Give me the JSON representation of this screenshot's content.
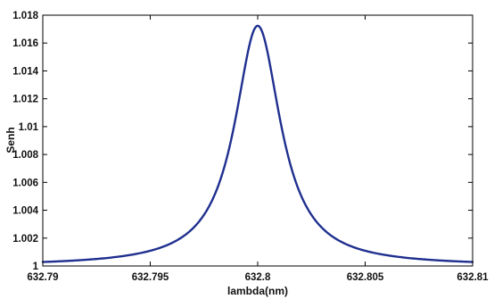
{
  "chart_data": {
    "type": "line",
    "title": "",
    "xlabel": "lambda(nm)",
    "ylabel": "Senh",
    "xlim": [
      632.79,
      632.81
    ],
    "ylim": [
      1.0,
      1.018
    ],
    "grid": false,
    "x_ticks": [
      "632.79",
      "632.795",
      "632.8",
      "632.805",
      "632.81"
    ],
    "y_ticks": [
      "1",
      "1.002",
      "1.004",
      "1.006",
      "1.008",
      "1.01",
      "1.012",
      "1.014",
      "1.016",
      "1.018"
    ],
    "series": [
      {
        "color": "#1f2f8f",
        "x": [
          632.79,
          632.791,
          632.792,
          632.793,
          632.794,
          632.795,
          632.796,
          632.7965,
          632.797,
          632.7975,
          632.798,
          632.7985,
          632.799,
          632.7995,
          632.8,
          632.8005,
          632.801,
          632.8015,
          632.802,
          632.8025,
          632.803,
          632.8035,
          632.804,
          632.805,
          632.806,
          632.807,
          632.808,
          632.809,
          632.81
        ],
        "y": [
          1.00095,
          1.00115,
          1.00142,
          1.00179,
          1.00232,
          1.00313,
          1.00445,
          1.00541,
          1.00666,
          1.00829,
          1.01043,
          1.0131,
          1.01582,
          1.01724,
          1.01724,
          1.01724,
          1.01582,
          1.0131,
          1.01043,
          1.00829,
          1.00666,
          1.00541,
          1.00445,
          1.00313,
          1.00232,
          1.00179,
          1.00142,
          1.00115,
          1.00095
        ]
      }
    ]
  }
}
